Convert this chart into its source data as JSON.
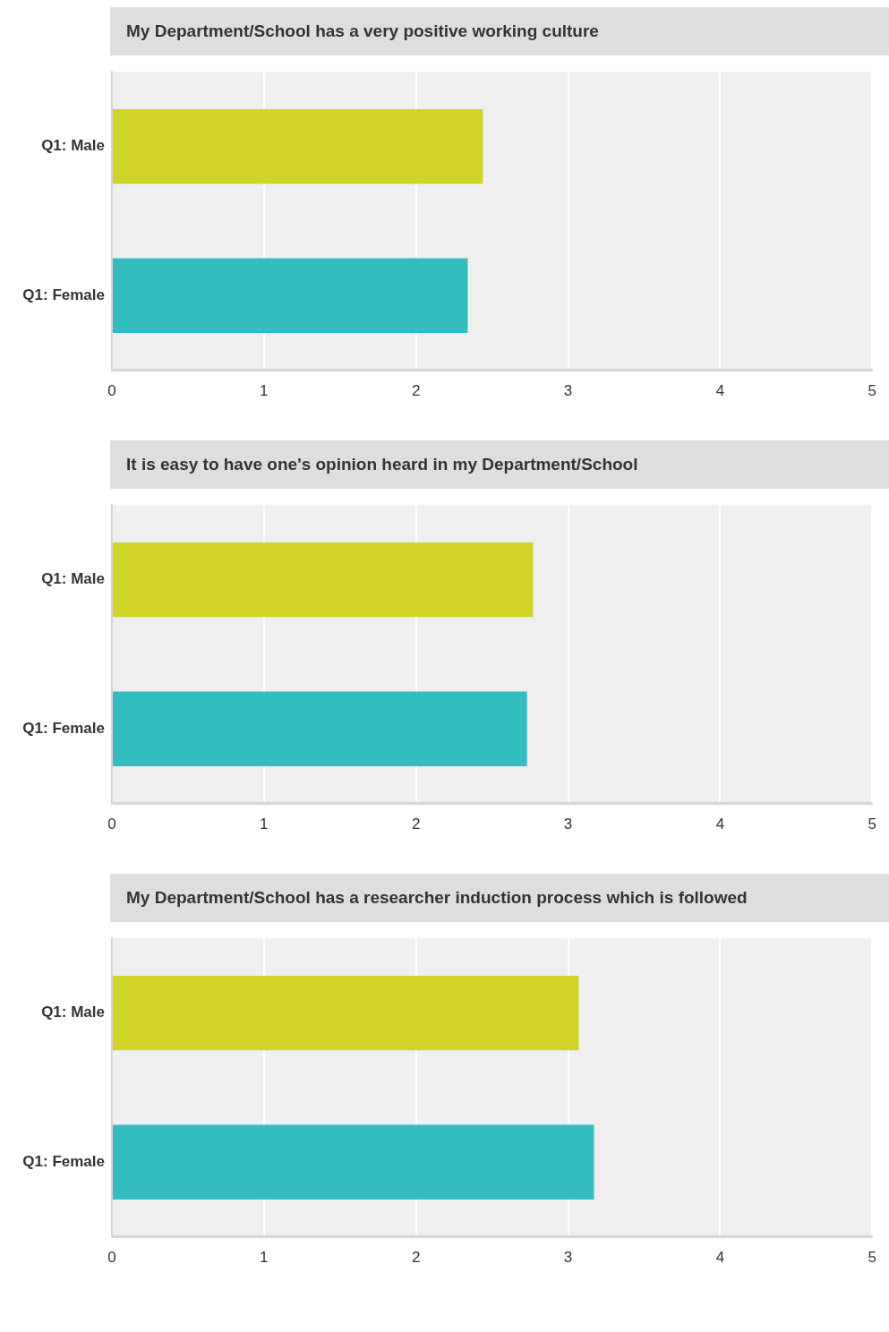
{
  "chart_data": [
    {
      "type": "bar",
      "orientation": "horizontal",
      "title": "My Department/School has a very positive working culture",
      "categories": [
        "Q1: Male",
        "Q1: Female"
      ],
      "values": [
        2.44,
        2.34
      ],
      "colors": [
        "#cfd426",
        "#33bdbf"
      ],
      "xlim": [
        0,
        5
      ],
      "xticks": [
        0,
        1,
        2,
        3,
        4,
        5
      ],
      "grid": "x"
    },
    {
      "type": "bar",
      "orientation": "horizontal",
      "title": "It is easy to have one's opinion heard in my Department/School",
      "categories": [
        "Q1: Male",
        "Q1: Female"
      ],
      "values": [
        2.77,
        2.73
      ],
      "colors": [
        "#cfd426",
        "#33bdbf"
      ],
      "xlim": [
        0,
        5
      ],
      "xticks": [
        0,
        1,
        2,
        3,
        4,
        5
      ],
      "grid": "x"
    },
    {
      "type": "bar",
      "orientation": "horizontal",
      "title": "My Department/School has a researcher induction process which is followed",
      "categories": [
        "Q1: Male",
        "Q1: Female"
      ],
      "values": [
        3.07,
        3.17
      ],
      "colors": [
        "#cfd426",
        "#33bdbf"
      ],
      "xlim": [
        0,
        5
      ],
      "xticks": [
        0,
        1,
        2,
        3,
        4,
        5
      ],
      "grid": "x"
    }
  ]
}
